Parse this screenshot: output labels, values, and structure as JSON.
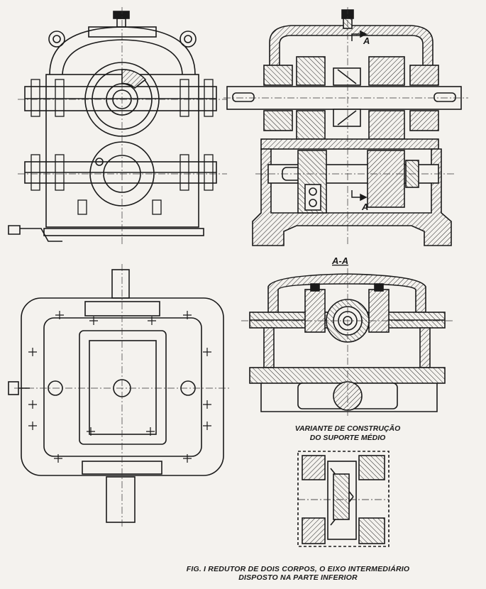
{
  "labels": {
    "section_mark": "A",
    "section_title": "A-A",
    "variant_line1": "VARIANTE DE CONSTRUÇÃO",
    "variant_line2": "DO SUPORTE MÉDIO"
  },
  "caption": {
    "line1": "FIG. I REDUTOR DE DOIS CORPOS, O EIXO INTERMEDIÁRIO",
    "line2": "DISPOSTO NA PARTE INFERIOR"
  }
}
